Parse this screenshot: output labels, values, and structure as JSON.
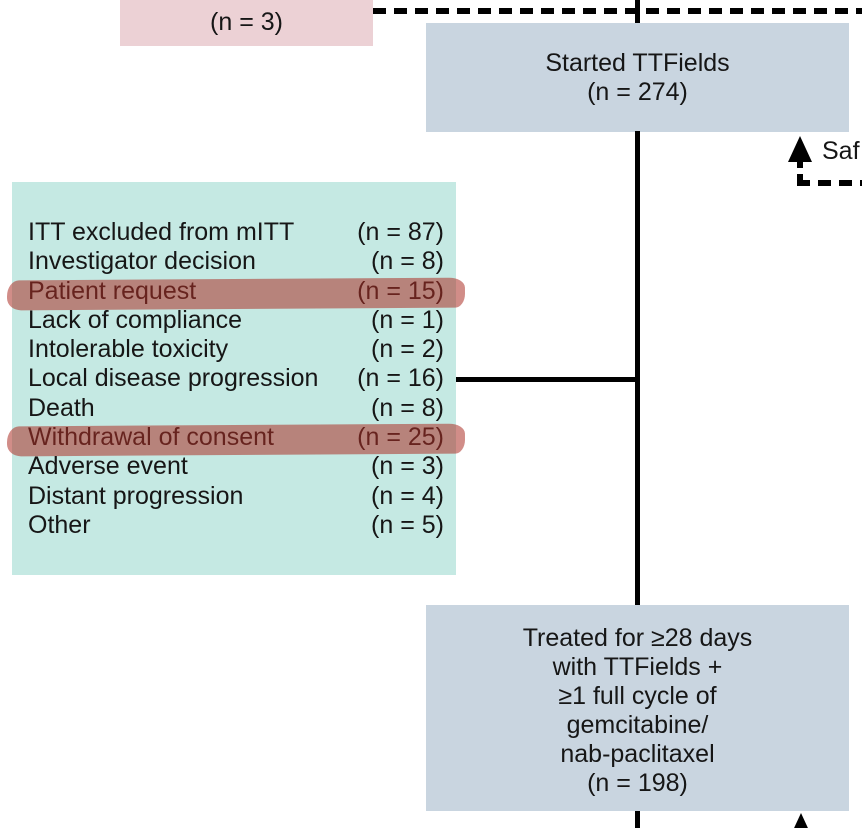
{
  "colors": {
    "pink_box_bg": "#ecd1d5",
    "blue_box_bg": "#c9d5e0",
    "teal_box_bg": "#c5e9e3",
    "highlight": "rgba(172, 48, 38, 0.55)",
    "line": "#000000"
  },
  "top_excluded_box": {
    "count": "(n = 3)"
  },
  "started_box": {
    "title": "Started TTFields",
    "count": "(n = 274)"
  },
  "safety_label": "Saf",
  "exclusion_box": {
    "items": [
      {
        "label": "ITT excluded from mITT",
        "count": "(n = 87)"
      },
      {
        "label": "Investigator decision",
        "count": "(n = 8)"
      },
      {
        "label": "Patient request",
        "count": "(n = 15)"
      },
      {
        "label": "Lack of compliance",
        "count": "(n = 1)"
      },
      {
        "label": "Intolerable toxicity",
        "count": "(n = 2)"
      },
      {
        "label": "Local disease progression",
        "count": "(n = 16)"
      },
      {
        "label": "Death",
        "count": "(n = 8)"
      },
      {
        "label": "Withdrawal of consent",
        "count": "(n = 25)"
      },
      {
        "label": "Adverse event",
        "count": "(n = 3)"
      },
      {
        "label": "Distant progression",
        "count": "(n = 4)"
      },
      {
        "label": "Other",
        "count": "(n = 5)"
      }
    ],
    "highlighted_indices": [
      2,
      7
    ]
  },
  "treated_box": {
    "lines": [
      "Treated for ≥28 days",
      "with TTFields +",
      "≥1 full cycle of",
      "gemcitabine/",
      "nab-paclitaxel",
      "(n = 198)"
    ]
  }
}
